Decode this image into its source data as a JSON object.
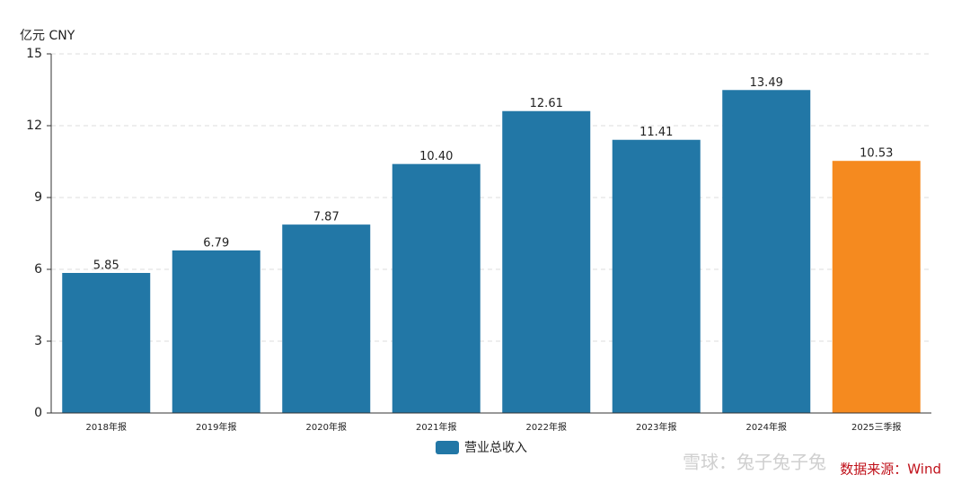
{
  "chart_data": {
    "type": "bar",
    "y_unit_label": "亿元  CNY",
    "categories": [
      "2018年报",
      "2019年报",
      "2020年报",
      "2021年报",
      "2022年报",
      "2023年报",
      "2024年报",
      "2025三季报"
    ],
    "series": [
      {
        "name": "营业总收入",
        "color": "#2277a6",
        "values": [
          5.85,
          6.79,
          7.87,
          10.4,
          12.61,
          11.41,
          13.49,
          10.53
        ],
        "value_labels": [
          "5.85",
          "6.79",
          "7.87",
          "10.40",
          "12.61",
          "11.41",
          "13.49",
          "10.53"
        ],
        "colors": [
          "#2277a6",
          "#2277a6",
          "#2277a6",
          "#2277a6",
          "#2277a6",
          "#2277a6",
          "#2277a6",
          "#f58a1f"
        ]
      }
    ],
    "ylim": [
      0,
      15
    ],
    "yticks": [
      0,
      3,
      6,
      9,
      12,
      15
    ],
    "grid": true,
    "source": "数据来源：Wind",
    "watermark": "雪球：兔子兔子兔"
  }
}
